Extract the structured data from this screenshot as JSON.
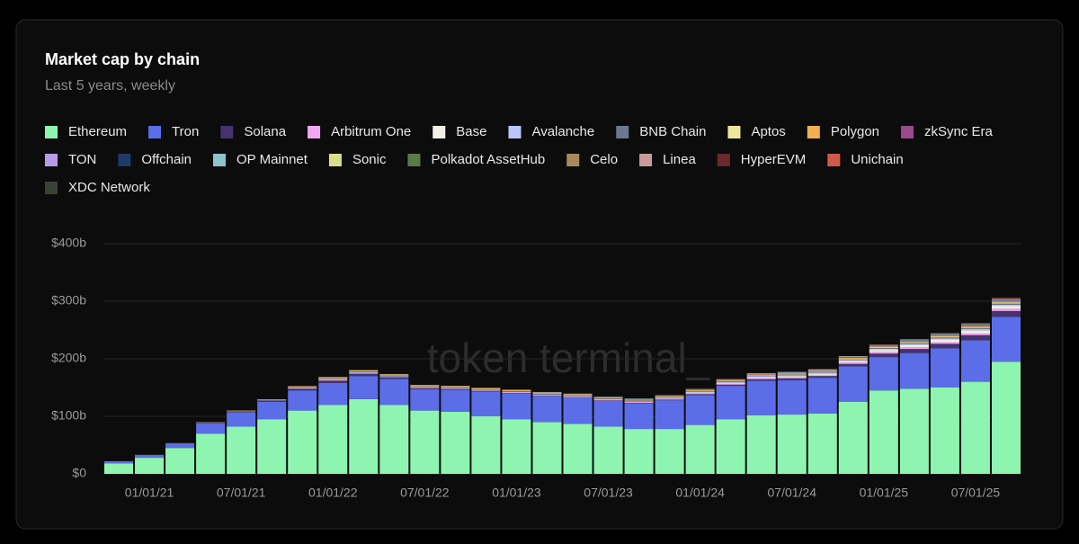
{
  "chart_data": {
    "type": "stacked_bar",
    "title": "Market cap by chain",
    "subtitle": "Last 5 years, weekly",
    "watermark": "token terminal_",
    "categories": [
      null,
      "01/01/21",
      null,
      null,
      "07/01/21",
      null,
      null,
      "01/01/22",
      null,
      null,
      "07/01/22",
      null,
      null,
      "01/01/23",
      null,
      null,
      "07/01/23",
      null,
      null,
      "01/01/24",
      null,
      null,
      "07/01/24",
      null,
      null,
      "01/01/25",
      null,
      null,
      "07/01/25",
      null
    ],
    "ylim": [
      0,
      400
    ],
    "yticks": [
      {
        "value": 0,
        "label": "$0"
      },
      {
        "value": 100,
        "label": "$100b"
      },
      {
        "value": 200,
        "label": "$200b"
      },
      {
        "value": 300,
        "label": "$300b"
      },
      {
        "value": 400,
        "label": "$400b"
      }
    ],
    "grid": true,
    "series": [
      {
        "name": "Ethereum",
        "color": "#8ef5b0",
        "values": [
          18,
          28,
          45,
          70,
          82,
          95,
          110,
          120,
          130,
          120,
          110,
          108,
          100,
          95,
          90,
          87,
          82,
          78,
          78,
          85,
          95,
          102,
          103,
          105,
          125,
          145,
          148,
          150,
          160,
          195
        ]
      },
      {
        "name": "Tron",
        "color": "#5b6ee8",
        "values": [
          4,
          5,
          8,
          18,
          25,
          30,
          35,
          38,
          40,
          45,
          37,
          38,
          43,
          45,
          45,
          45,
          45,
          45,
          50,
          52,
          58,
          60,
          60,
          62,
          62,
          58,
          62,
          68,
          72,
          78
        ]
      },
      {
        "name": "Solana",
        "color": "#45336f",
        "values": [
          0,
          0,
          0,
          0.5,
          1,
          2,
          3,
          4,
          4,
          3,
          2,
          1.5,
          1,
          0.5,
          0.5,
          0.5,
          0.5,
          0.5,
          1,
          1.5,
          2,
          2.5,
          3,
          3,
          4,
          6,
          7,
          8,
          9,
          10
        ]
      },
      {
        "name": "Arbitrum One",
        "color": "#f2a8f0",
        "values": [
          0,
          0,
          0,
          0,
          0,
          0.2,
          1,
          1.5,
          1.5,
          1,
          1,
          1,
          1,
          1,
          1.5,
          1.5,
          1.5,
          1.5,
          1.5,
          2,
          2,
          2,
          2,
          2,
          2.5,
          3,
          3,
          3,
          3.5,
          4
        ]
      },
      {
        "name": "Base",
        "color": "#f2f0e6",
        "values": [
          0,
          0,
          0,
          0,
          0,
          0,
          0,
          0,
          0,
          0,
          0,
          0,
          0,
          0,
          0,
          0,
          0,
          0.3,
          0.5,
          0.8,
          1,
          1.5,
          2,
          2.5,
          3,
          3.5,
          4,
          4.5,
          5,
          5
        ]
      },
      {
        "name": "Avalanche",
        "color": "#bac6f8",
        "values": [
          0,
          0,
          0,
          0,
          0,
          0.5,
          1,
          1.5,
          1.5,
          1,
          1,
          1,
          1,
          1,
          1,
          1,
          1,
          1,
          1,
          1.5,
          1.5,
          1.5,
          1.5,
          1.5,
          1.5,
          2,
          2,
          2,
          2,
          2
        ]
      },
      {
        "name": "BNB Chain",
        "color": "#6b7890",
        "values": [
          0,
          0.2,
          0.5,
          1,
          1,
          1,
          1,
          1,
          1,
          1,
          1,
          1,
          1,
          1,
          1,
          1,
          1,
          1,
          1,
          1,
          1,
          1,
          1,
          1,
          1,
          1,
          1.5,
          1.5,
          2,
          2
        ]
      },
      {
        "name": "Aptos",
        "color": "#ece79a",
        "values": [
          0,
          0,
          0,
          0,
          0,
          0,
          0,
          0,
          0,
          0,
          0,
          0,
          0,
          0.2,
          0.3,
          0.3,
          0.4,
          0.5,
          0.5,
          0.5,
          0.6,
          0.7,
          0.8,
          0.9,
          1,
          1.1,
          1.2,
          1.4,
          1.6,
          2
        ]
      },
      {
        "name": "Polygon",
        "color": "#f0b050",
        "values": [
          0,
          0,
          0,
          0.5,
          1,
          1,
          1.5,
          2,
          2,
          2,
          2,
          2,
          2,
          2,
          2,
          2,
          1.5,
          1.5,
          1.5,
          1.5,
          1.5,
          1.5,
          1.5,
          1.5,
          1.5,
          1.5,
          1.5,
          1.5,
          1.5,
          1.5
        ]
      },
      {
        "name": "zkSync Era",
        "color": "#9a4a8a",
        "values": [
          0,
          0,
          0,
          0,
          0,
          0,
          0,
          0,
          0,
          0,
          0,
          0,
          0,
          0,
          0.2,
          0.3,
          0.4,
          0.5,
          0.5,
          0.5,
          0.6,
          0.6,
          0.5,
          0.5,
          0.5,
          0.5,
          0.5,
          0.5,
          0.5,
          0.5
        ]
      },
      {
        "name": "TON",
        "color": "#b99ae8",
        "values": [
          0,
          0,
          0,
          0,
          0,
          0,
          0,
          0,
          0,
          0,
          0,
          0,
          0,
          0,
          0,
          0,
          0,
          0,
          0,
          0,
          0,
          0.2,
          0.4,
          0.5,
          0.6,
          0.7,
          0.8,
          0.9,
          1,
          1
        ]
      },
      {
        "name": "Offchain",
        "color": "#1f3a66",
        "values": [
          0,
          0,
          0,
          0,
          0,
          0,
          0,
          0,
          0,
          0,
          0,
          0,
          0,
          0,
          0,
          0,
          0,
          0,
          0,
          0,
          0,
          0,
          0,
          0,
          0.3,
          0.4,
          0.5,
          0.5,
          0.6,
          0.7
        ]
      },
      {
        "name": "OP Mainnet",
        "color": "#8cc4cc",
        "values": [
          0,
          0,
          0,
          0,
          0,
          0,
          0,
          0.3,
          0.5,
          0.5,
          0.5,
          0.5,
          0.5,
          0.6,
          0.7,
          0.8,
          0.8,
          0.8,
          0.9,
          1,
          1,
          1,
          1,
          1,
          1,
          1,
          1,
          1,
          1,
          1
        ]
      },
      {
        "name": "Sonic",
        "color": "#d8e08a",
        "values": [
          0,
          0,
          0,
          0,
          0,
          0,
          0,
          0,
          0,
          0,
          0,
          0,
          0,
          0,
          0,
          0,
          0,
          0,
          0,
          0,
          0,
          0,
          0,
          0,
          0,
          0,
          0.2,
          0.3,
          0.4,
          0.5
        ]
      },
      {
        "name": "Polkadot AssetHub",
        "color": "#5a7a48",
        "values": [
          0,
          0,
          0,
          0,
          0,
          0,
          0,
          0,
          0,
          0,
          0,
          0,
          0,
          0,
          0,
          0,
          0,
          0,
          0,
          0,
          0,
          0,
          0,
          0,
          0.1,
          0.2,
          0.2,
          0.3,
          0.3,
          0.3
        ]
      },
      {
        "name": "Celo",
        "color": "#a88a5a",
        "values": [
          0,
          0,
          0,
          0,
          0,
          0,
          0,
          0,
          0,
          0,
          0.1,
          0.1,
          0.1,
          0.1,
          0.1,
          0.1,
          0.1,
          0.1,
          0.1,
          0.1,
          0.1,
          0.1,
          0.1,
          0.1,
          0.1,
          0.1,
          0.1,
          0.1,
          0.1,
          0.1
        ]
      },
      {
        "name": "Linea",
        "color": "#c89a9a",
        "values": [
          0,
          0,
          0,
          0,
          0,
          0,
          0,
          0,
          0,
          0,
          0,
          0,
          0,
          0,
          0,
          0,
          0,
          0.2,
          0.3,
          0.3,
          0.4,
          0.5,
          0.5,
          0.5,
          0.6,
          0.6,
          0.6,
          0.7,
          0.7,
          0.7
        ]
      },
      {
        "name": "HyperEVM",
        "color": "#6a2a2a",
        "values": [
          0,
          0,
          0,
          0,
          0,
          0,
          0,
          0,
          0,
          0,
          0,
          0,
          0,
          0,
          0,
          0,
          0,
          0,
          0,
          0,
          0,
          0,
          0,
          0,
          0,
          0,
          0,
          0,
          0.5,
          1.5
        ]
      },
      {
        "name": "Unichain",
        "color": "#d05a4a",
        "values": [
          0,
          0,
          0,
          0,
          0,
          0,
          0,
          0,
          0,
          0,
          0,
          0,
          0,
          0,
          0,
          0,
          0,
          0,
          0,
          0,
          0,
          0,
          0,
          0,
          0,
          0,
          0.2,
          0.3,
          0.4,
          0.5
        ]
      },
      {
        "name": "XDC Network",
        "color": "#3a4234",
        "values": [
          0,
          0,
          0,
          0,
          0,
          0,
          0,
          0,
          0,
          0,
          0,
          0,
          0,
          0,
          0,
          0,
          0,
          0,
          0,
          0,
          0,
          0,
          0,
          0,
          0,
          0,
          0.1,
          0.1,
          0.1,
          0.1
        ]
      }
    ]
  }
}
